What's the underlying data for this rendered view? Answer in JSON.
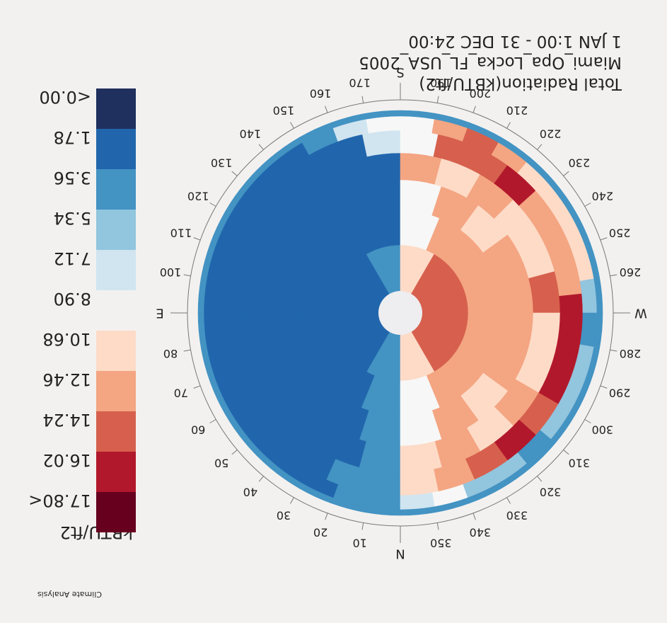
{
  "chart_data": {
    "type": "heatmap",
    "subtype": "radiation-rose (sky dome), image shown rotated 180 degrees",
    "title_lines": [
      "Total Radiation(kBTU/ft2)",
      "Miami_Opa_Locka_FL_USA_2005",
      "1 JAN 1:00 - 31 DEC 24:00"
    ],
    "legend_title": "kBTU/ft2",
    "legend_labels": [
      "<0.00",
      "1.78",
      "3.56",
      "5.34",
      "7.12",
      "8.90",
      "10.68",
      "12.46",
      "14.24",
      "16.02",
      "17.80<"
    ],
    "legend_colors": [
      "#1f2f5e",
      "#2166ac",
      "#4393c3",
      "#92c5de",
      "#d1e5f0",
      "#f7f7f7",
      "#fddbc7",
      "#f4a582",
      "#d6604d",
      "#b2182b",
      "#67001f"
    ],
    "cardinal_labels": [
      "N",
      "E",
      "S",
      "W"
    ],
    "azimuth_ticks": [
      "10",
      "20",
      "30",
      "40",
      "50",
      "60",
      "70",
      "80",
      "100",
      "110",
      "120",
      "130",
      "140",
      "150",
      "160",
      "170",
      "190",
      "200",
      "210",
      "220",
      "230",
      "240",
      "250",
      "260",
      "280",
      "290",
      "300",
      "310",
      "320",
      "330",
      "340",
      "350"
    ],
    "ring_levels": [
      "center",
      "ring1",
      "ring2",
      "ring3",
      "ring4",
      "ring5",
      "ring6",
      "ring7"
    ],
    "ring_sector_counts": [
      6,
      12,
      16,
      20,
      24,
      30,
      36,
      72
    ],
    "sector_values_by_ring": [
      [
        3.8,
        3.5,
        3.8,
        13.6,
        15.4,
        14.8
      ],
      [
        3.6,
        3.4,
        3.4,
        3.3,
        3.4,
        3.6,
        11.0,
        14.6,
        15.2,
        15.4,
        14.6,
        11.0
      ],
      [
        3.7,
        3.3,
        3.2,
        3.1,
        3.1,
        3.1,
        3.2,
        3.3,
        9.0,
        14.0,
        13.6,
        14.2,
        13.8,
        13.6,
        13.8,
        9.0
      ],
      [
        4.0,
        3.3,
        3.0,
        2.9,
        2.8,
        2.8,
        2.8,
        2.9,
        3.0,
        3.4,
        10.4,
        12.8,
        11.2,
        13.0,
        13.2,
        13.4,
        13.2,
        11.2,
        12.6,
        10.4
      ],
      [
        4.2,
        3.4,
        3.0,
        2.8,
        2.7,
        2.6,
        2.6,
        2.6,
        2.7,
        2.8,
        3.1,
        3.5,
        12.8,
        11.8,
        12.6,
        11.4,
        12.0,
        14.4,
        12.2,
        11.2,
        12.6,
        11.8,
        12.8,
        12.0
      ],
      [
        4.4,
        3.6,
        3.2,
        3.0,
        2.8,
        2.7,
        2.6,
        2.6,
        2.6,
        2.7,
        2.8,
        3.0,
        3.2,
        3.5,
        7.2,
        9.2,
        14.4,
        15.2,
        16.6,
        14.0,
        13.4,
        13.0,
        16.8,
        16.2,
        17.2,
        16.0,
        17.4,
        15.6,
        14.0,
        11.4
      ],
      [
        4.6,
        3.9,
        3.4,
        3.2,
        3.0,
        2.9,
        2.8,
        2.7,
        2.7,
        2.7,
        2.8,
        2.9,
        3.0,
        3.2,
        3.4,
        3.9,
        8.2,
        9.6,
        10.2,
        12.6,
        14.8,
        13.8,
        11.8,
        11.0,
        11.6,
        10.8,
        6.2,
        5.2,
        5.8,
        6.6,
        5.6,
        4.8,
        6.0,
        6.8,
        10.2,
        8.6
      ],
      [
        5.0,
        5.0,
        5.0,
        5.0,
        5.0,
        5.0,
        5.0,
        5.0,
        5.0,
        5.0,
        5.0,
        5.0,
        5.0,
        5.0,
        5.0,
        5.0,
        5.0,
        5.0,
        5.0,
        5.0,
        5.0,
        5.0,
        5.0,
        5.0,
        5.0,
        5.0,
        5.0,
        5.0,
        5.0,
        5.0,
        5.0,
        5.0,
        5.0,
        5.0,
        5.0,
        5.0,
        5.0,
        5.0,
        5.0,
        5.0,
        5.0,
        5.0,
        5.0,
        5.0,
        5.0,
        5.0,
        5.0,
        5.0,
        5.0,
        5.0,
        5.0,
        5.0,
        5.0,
        5.0,
        5.0,
        5.0,
        5.0,
        5.0,
        5.0,
        5.0,
        5.0,
        5.0,
        5.0,
        5.0,
        5.0,
        5.0,
        5.0,
        5.0,
        5.0,
        5.0,
        5.0,
        5.0
      ]
    ],
    "orientation": "rotated 180 degrees (upside-down); North at bottom",
    "legend_position": "left",
    "grid": false
  },
  "watermark": "Climate Analysis"
}
